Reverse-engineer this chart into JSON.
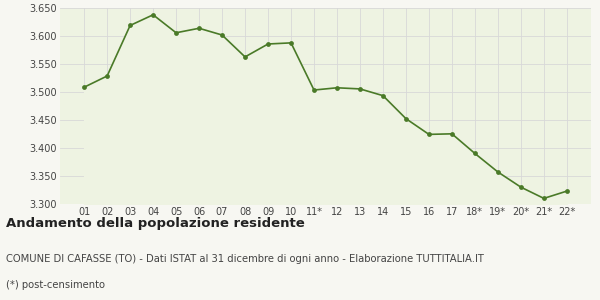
{
  "x_labels": [
    "01",
    "02",
    "03",
    "04",
    "05",
    "06",
    "07",
    "08",
    "09",
    "10",
    "11*",
    "12",
    "13",
    "14",
    "15",
    "16",
    "17",
    "18*",
    "19*",
    "20*",
    "21*",
    "22*"
  ],
  "y_values": [
    3508,
    3528,
    3618,
    3637,
    3605,
    3613,
    3601,
    3562,
    3585,
    3587,
    3503,
    3507,
    3505,
    3493,
    3452,
    3424,
    3425,
    3390,
    3357,
    3330,
    3310,
    3323
  ],
  "line_color": "#4a7a28",
  "fill_color": "#eef3e2",
  "marker_color": "#4a7a28",
  "bg_color": "#f7f7f2",
  "grid_color": "#d8d8d8",
  "ylim_min": 3300,
  "ylim_max": 3650,
  "yticks": [
    3300,
    3350,
    3400,
    3450,
    3500,
    3550,
    3600,
    3650
  ],
  "title": "Andamento della popolazione residente",
  "subtitle": "COMUNE DI CAFASSE (TO) - Dati ISTAT al 31 dicembre di ogni anno - Elaborazione TUTTITALIA.IT",
  "footnote": "(*) post-censimento",
  "title_fontsize": 9.5,
  "subtitle_fontsize": 7.2,
  "tick_fontsize": 7.0
}
